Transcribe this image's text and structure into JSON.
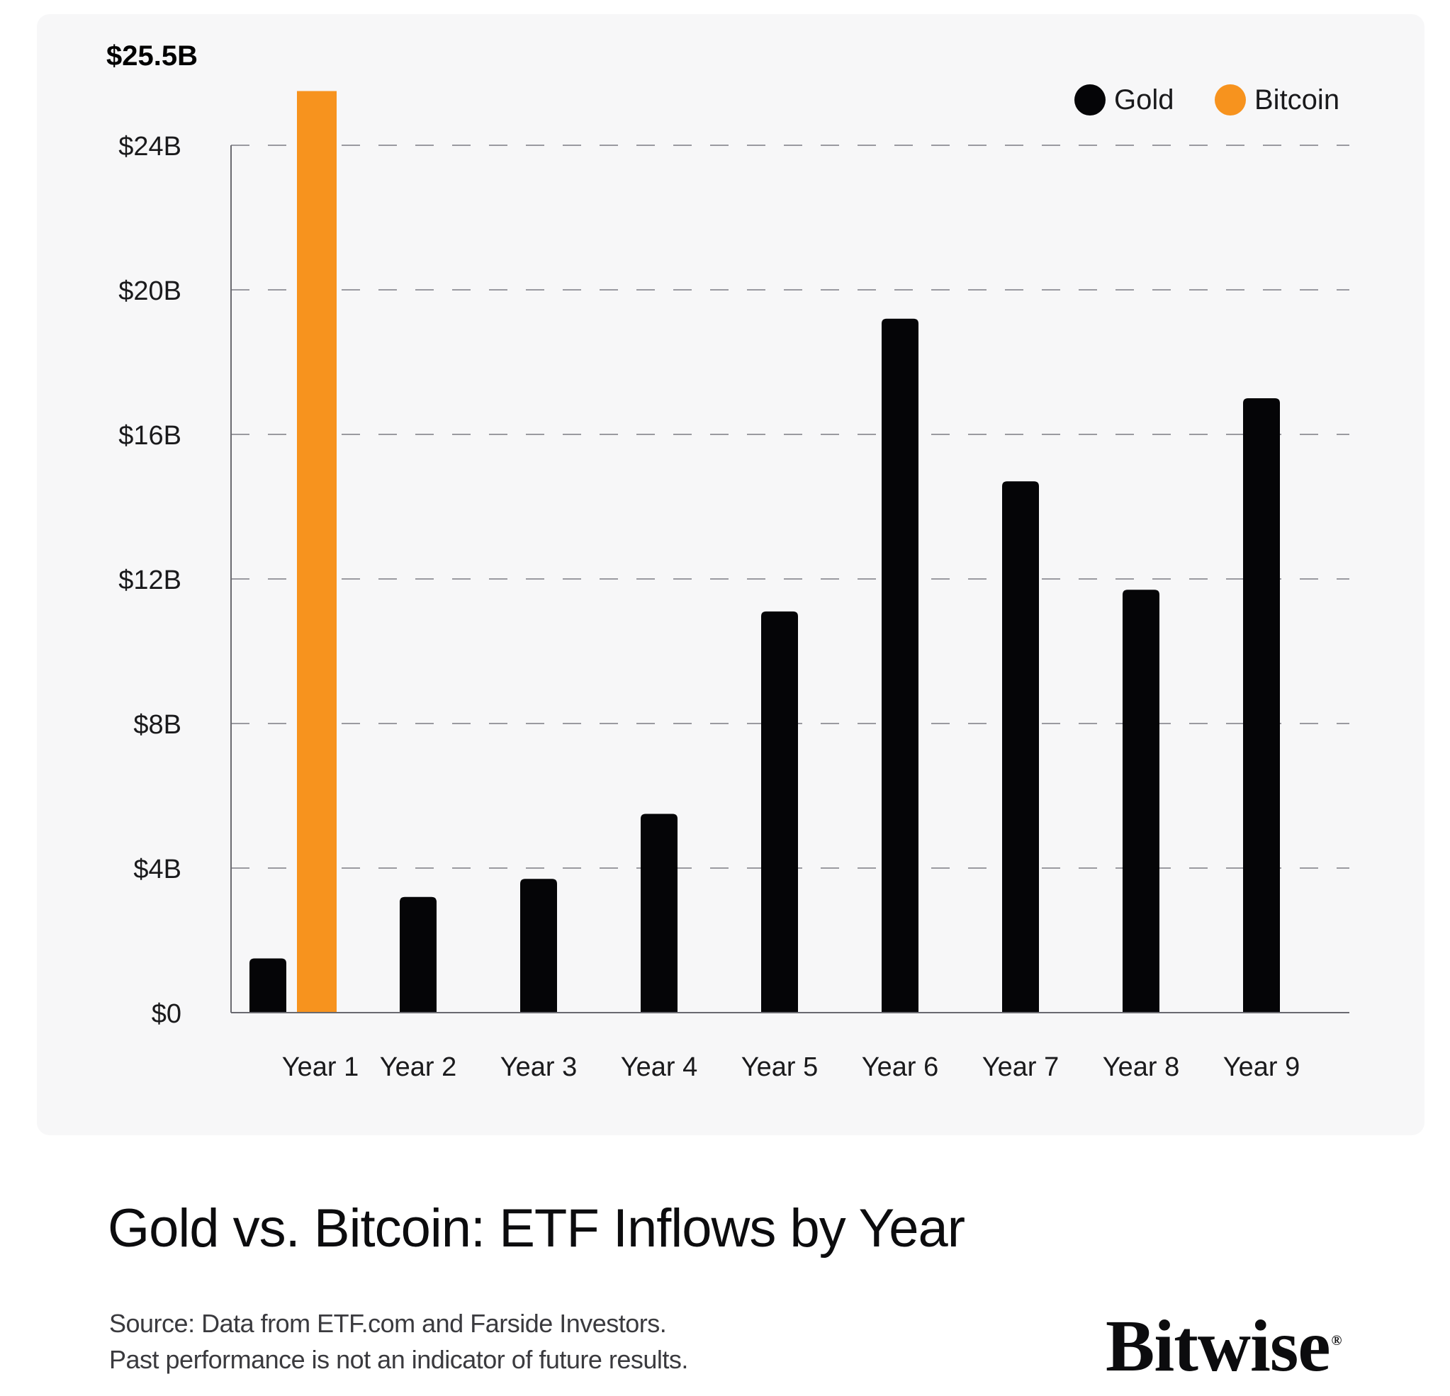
{
  "chart_data": {
    "type": "bar",
    "title": "Gold vs. Bitcoin: ETF Inflows by Year",
    "categories": [
      "Year 1",
      "Year 2",
      "Year 3",
      "Year 4",
      "Year 5",
      "Year 6",
      "Year 7",
      "Year 8",
      "Year 9"
    ],
    "series": [
      {
        "name": "Gold",
        "color": "#050507",
        "values": [
          1.5,
          3.2,
          3.7,
          5.5,
          11.1,
          19.2,
          14.7,
          11.7,
          17.0
        ]
      },
      {
        "name": "Bitcoin",
        "color": "#f7931e",
        "values": [
          25.5,
          null,
          null,
          null,
          null,
          null,
          null,
          null,
          null
        ]
      }
    ],
    "ylim": [
      0,
      24
    ],
    "yticks": [
      {
        "value": 0,
        "label": "$0"
      },
      {
        "value": 4,
        "label": "$4B"
      },
      {
        "value": 8,
        "label": "$8B"
      },
      {
        "value": 12,
        "label": "$12B"
      },
      {
        "value": 16,
        "label": "$16B"
      },
      {
        "value": 20,
        "label": "$20B"
      },
      {
        "value": 24,
        "label": "$24B"
      }
    ],
    "annotation": "$25.5B",
    "legend": [
      "Gold",
      "Bitcoin"
    ],
    "legend_position": "top-right",
    "grid": "dashed horizontal",
    "xlabel": "",
    "ylabel": ""
  },
  "footer": {
    "title": "Gold vs. Bitcoin: ETF Inflows by Year",
    "source_line1": "Source: Data from ETF.com and Farside Investors.",
    "source_line2": "Past performance is not an indicator of future results.",
    "brand": "Bitwise",
    "brand_mark": "®"
  }
}
